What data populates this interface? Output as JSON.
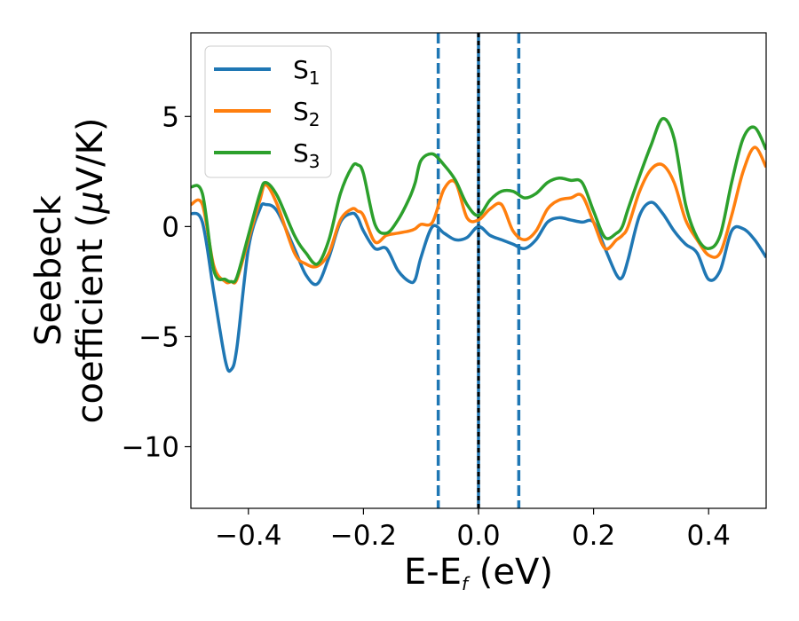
{
  "chart_data": {
    "type": "line",
    "xlabel": {
      "main": "E-E",
      "sub": "f",
      "unit": " (eV)"
    },
    "ylabel": {
      "line1": "Seebeck",
      "line2": "coefficient  (",
      "mu": "μ",
      "line2_end": "V/K)"
    },
    "xlim": [
      -0.5,
      0.5
    ],
    "ylim": [
      -12.8,
      8.8
    ],
    "x_ticks": [
      -0.4,
      -0.2,
      0.0,
      0.2,
      0.4
    ],
    "x_tick_labels": [
      "−0.4",
      "−0.2",
      "0.0",
      "0.2",
      "0.4"
    ],
    "y_ticks": [
      5,
      0,
      -5,
      -10
    ],
    "y_tick_labels": [
      "5",
      "0",
      "−5",
      "−10"
    ],
    "legend_position": "upper-left",
    "vertical_lines": [
      {
        "x": -0.07,
        "color": "#1f77b4",
        "style": "dashed"
      },
      {
        "x": 0.0,
        "color": "#1f77b4",
        "style": "solid"
      },
      {
        "x": 0.0,
        "color": "#000000",
        "style": "dashed"
      },
      {
        "x": 0.07,
        "color": "#1f77b4",
        "style": "dashed"
      }
    ],
    "x": [
      -0.5,
      -0.48,
      -0.46,
      -0.44,
      -0.43,
      -0.42,
      -0.4,
      -0.38,
      -0.37,
      -0.35,
      -0.32,
      -0.3,
      -0.28,
      -0.26,
      -0.24,
      -0.22,
      -0.21,
      -0.2,
      -0.18,
      -0.16,
      -0.14,
      -0.12,
      -0.11,
      -0.1,
      -0.08,
      -0.06,
      -0.04,
      -0.02,
      0.0,
      0.02,
      0.04,
      0.06,
      0.08,
      0.1,
      0.12,
      0.14,
      0.16,
      0.18,
      0.2,
      0.22,
      0.24,
      0.25,
      0.26,
      0.28,
      0.3,
      0.32,
      0.34,
      0.36,
      0.38,
      0.4,
      0.42,
      0.44,
      0.46,
      0.48,
      0.5
    ],
    "series": [
      {
        "name": "S",
        "sub": "1",
        "color": "#1f77b4",
        "values": [
          0.6,
          0.2,
          -3.0,
          -6.1,
          -6.5,
          -5.5,
          -1.0,
          0.8,
          1.0,
          0.7,
          -1.0,
          -2.2,
          -2.6,
          -1.4,
          0.2,
          0.6,
          0.4,
          -0.2,
          -1.0,
          -1.0,
          -2.0,
          -2.5,
          -2.4,
          -1.4,
          0.0,
          -0.3,
          -0.6,
          -0.5,
          0.0,
          -0.4,
          -0.6,
          -0.8,
          -1.0,
          -0.6,
          0.2,
          0.4,
          0.3,
          0.2,
          0.2,
          -1.0,
          -2.2,
          -2.3,
          -1.5,
          0.5,
          1.1,
          0.6,
          -0.2,
          -0.8,
          -1.2,
          -2.4,
          -2.0,
          -0.2,
          -0.1,
          -0.6,
          -1.4
        ]
      },
      {
        "name": "S",
        "sub": "2",
        "color": "#ff7f0e",
        "values": [
          1.0,
          1.0,
          -1.8,
          -2.5,
          -2.5,
          -2.4,
          -0.6,
          1.2,
          1.9,
          1.0,
          -1.2,
          -1.7,
          -1.8,
          -1.2,
          0.3,
          0.8,
          0.7,
          0.5,
          -0.7,
          -0.4,
          -0.3,
          -0.2,
          -0.1,
          0.1,
          0.2,
          1.7,
          2.0,
          0.4,
          0.3,
          0.8,
          1.0,
          -0.2,
          -0.6,
          -0.2,
          0.8,
          1.2,
          1.3,
          1.4,
          0.2,
          -1.0,
          -0.6,
          -0.4,
          0.0,
          1.6,
          2.6,
          2.8,
          2.0,
          0.3,
          -0.6,
          -1.3,
          -1.2,
          0.5,
          2.5,
          3.6,
          2.7
        ]
      },
      {
        "name": "S",
        "sub": "3",
        "color": "#2ca02c",
        "values": [
          1.8,
          1.5,
          -2.0,
          -2.4,
          -2.5,
          -2.3,
          -0.4,
          1.5,
          2.0,
          1.4,
          -0.4,
          -1.2,
          -1.7,
          -0.6,
          1.5,
          2.7,
          2.8,
          2.4,
          0.1,
          -0.3,
          0.3,
          1.3,
          2.0,
          3.0,
          3.3,
          2.8,
          2.1,
          1.0,
          0.5,
          1.2,
          1.6,
          1.6,
          1.3,
          1.5,
          2.0,
          2.2,
          2.1,
          2.0,
          0.7,
          -0.5,
          -0.3,
          0.0,
          0.8,
          2.3,
          3.7,
          4.9,
          4.0,
          1.0,
          -0.5,
          -1.0,
          -0.4,
          2.0,
          4.0,
          4.5,
          3.5
        ]
      }
    ]
  }
}
